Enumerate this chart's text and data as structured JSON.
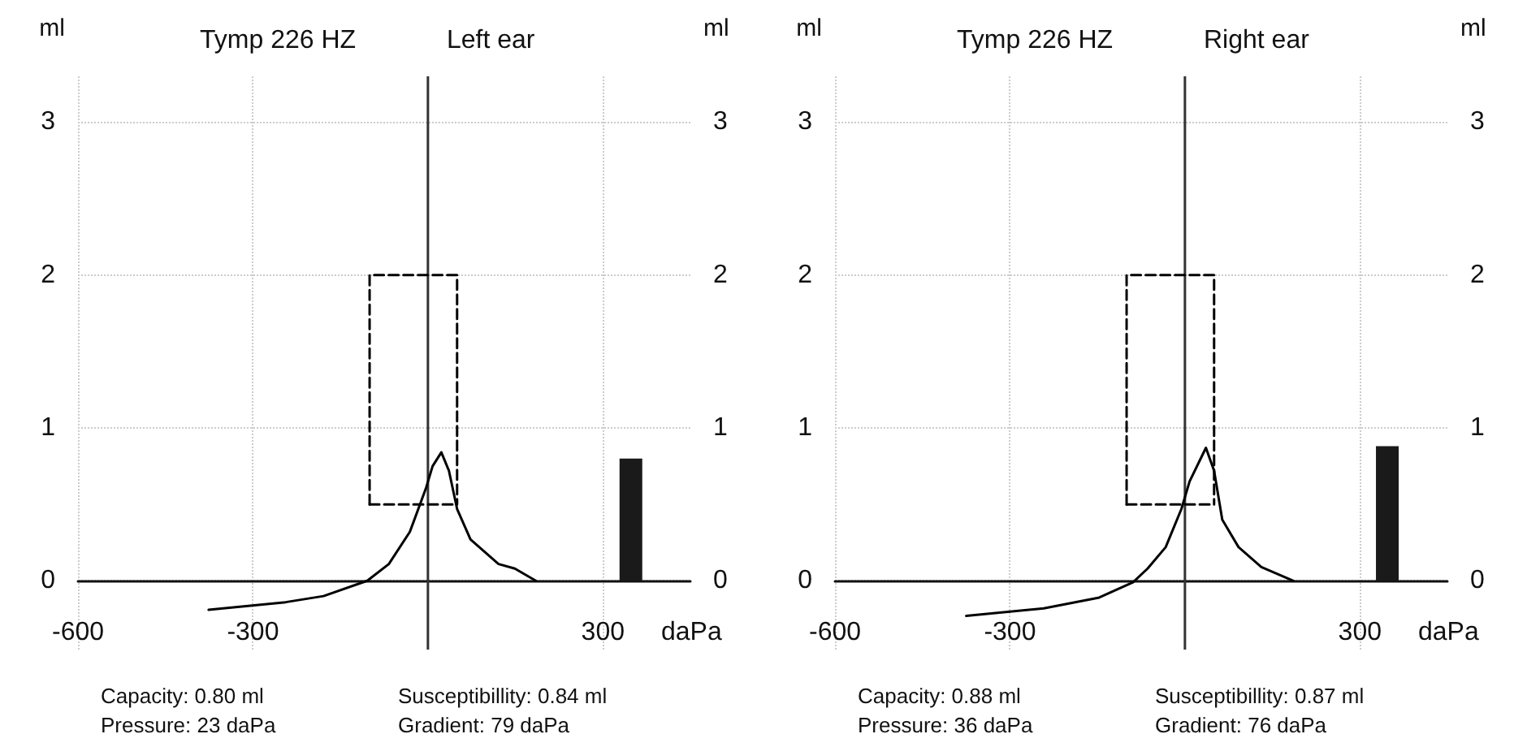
{
  "chart_data": [
    {
      "type": "line",
      "title": "Tymp 226 HZ",
      "subtitle": "Left ear",
      "xlabel": "daPa",
      "ylabel": "ml",
      "y2label": "ml",
      "xlim": [
        -600,
        450
      ],
      "xticks": [
        -600,
        -300,
        300
      ],
      "ylim": [
        -0.45,
        3.3
      ],
      "yticks": [
        0,
        1,
        2,
        3
      ],
      "y2lim": [
        -0.45,
        3.3
      ],
      "y2ticks": [
        0,
        1,
        2,
        3
      ],
      "grid": true,
      "marker": "none",
      "series": [
        {
          "color": "#000000",
          "x": [
            -376,
            -244,
            -179,
            -104,
            -67,
            -31,
            -3,
            8,
            23,
            36,
            50,
            73,
            121,
            149,
            185
          ],
          "values": [
            -0.19,
            -0.14,
            -0.1,
            0,
            0.11,
            0.32,
            0.61,
            0.75,
            0.84,
            0.72,
            0.47,
            0.27,
            0.11,
            0.08,
            0
          ]
        },
        {
          "color": "#000000",
          "line_style": "dashed",
          "x": [
            -100,
            -100,
            50,
            50
          ],
          "values": [
            0.5,
            2,
            2,
            0.5
          ]
        },
        {
          "color": "#000000",
          "line_style": "dashed",
          "x": [
            -100,
            50
          ],
          "values": [
            0.5,
            0.5
          ]
        },
        {
          "type": "bar",
          "color": "#1a1a1a",
          "x": [
            348
          ],
          "values": [
            0.8
          ]
        }
      ],
      "ref_lines": [
        {
          "axis": "x",
          "value": 0,
          "color": "#333333"
        }
      ],
      "annotations": [
        "Capacity: 0.80 ml",
        "Susceptibillity: 0.84 ml",
        "Pressure: 23 daPa",
        "Gradient: 79 daPa"
      ]
    },
    {
      "type": "line",
      "title": "Tymp 226 HZ",
      "subtitle": "Right ear",
      "xlabel": "daPa",
      "ylabel": "ml",
      "y2label": "ml",
      "xlim": [
        -600,
        450
      ],
      "xticks": [
        -600,
        -300,
        300
      ],
      "ylim": [
        -0.45,
        3.3
      ],
      "yticks": [
        0,
        1,
        2,
        3
      ],
      "y2lim": [
        -0.45,
        3.3
      ],
      "y2ticks": [
        0,
        1,
        2,
        3
      ],
      "grid": true,
      "marker": "none",
      "series": [
        {
          "color": "#000000",
          "x": [
            -375,
            -242,
            -147,
            -89,
            -64,
            -33,
            -6,
            8,
            36,
            50,
            64,
            92,
            131,
            186
          ],
          "values": [
            -0.23,
            -0.18,
            -0.11,
            -0.01,
            0.08,
            0.22,
            0.47,
            0.65,
            0.87,
            0.72,
            0.4,
            0.22,
            0.09,
            0
          ]
        },
        {
          "color": "#000000",
          "line_style": "dashed",
          "x": [
            -100,
            -100,
            50,
            50
          ],
          "values": [
            0.5,
            2,
            2,
            0.5
          ]
        },
        {
          "color": "#000000",
          "line_style": "dashed",
          "x": [
            -100,
            50
          ],
          "values": [
            0.5,
            0.5
          ]
        },
        {
          "type": "bar",
          "color": "#1a1a1a",
          "x": [
            347
          ],
          "values": [
            0.88
          ]
        }
      ],
      "ref_lines": [
        {
          "axis": "x",
          "value": 0,
          "color": "#333333"
        }
      ],
      "annotations": [
        "Capacity: 0.88 ml",
        "Susceptibillity: 0.87 ml",
        "Pressure: 36 daPa",
        "Gradient: 76 daPa"
      ]
    }
  ]
}
